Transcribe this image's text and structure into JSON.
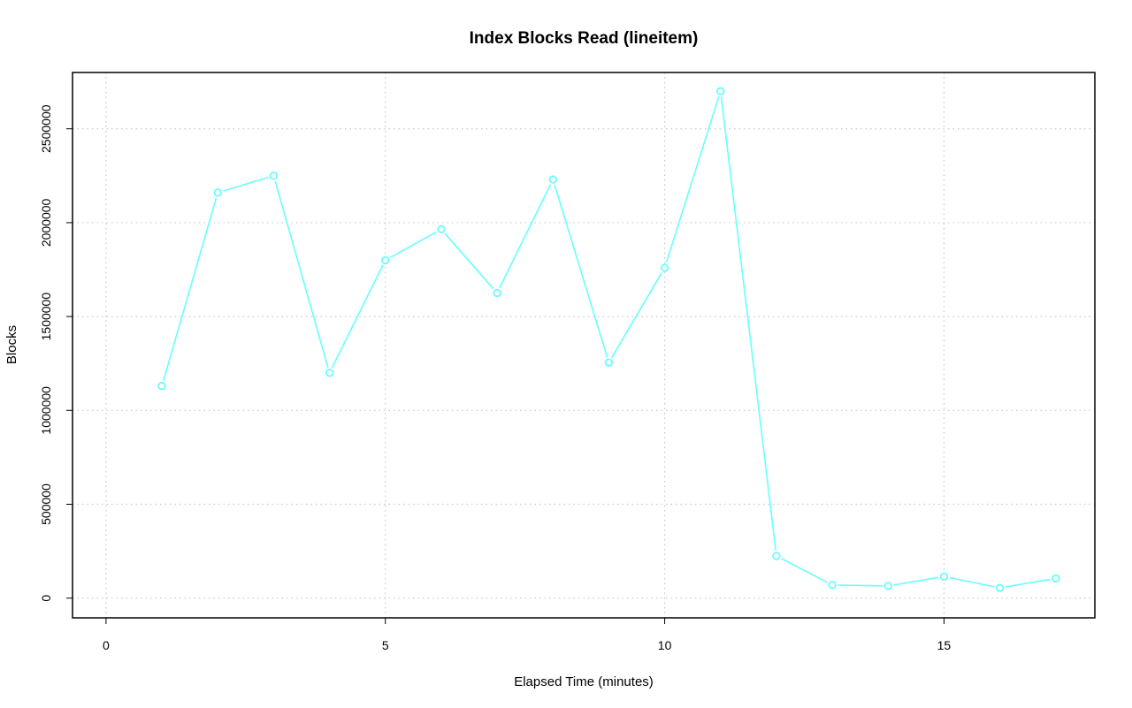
{
  "chart_data": {
    "type": "line",
    "title": "Index Blocks Read (lineitem)",
    "xlabel": "Elapsed Time (minutes)",
    "ylabel": "Blocks",
    "xlim": [
      -0.6,
      17.7
    ],
    "ylim": [
      -105000,
      2800000
    ],
    "x_ticks": [
      0,
      5,
      10,
      15
    ],
    "y_ticks": [
      0,
      500000,
      1000000,
      1500000,
      2000000,
      2500000
    ],
    "x_tick_labels": [
      "0",
      "5",
      "10",
      "15"
    ],
    "y_tick_labels": [
      "0",
      "500000",
      "1000000",
      "1500000",
      "2000000",
      "2500000"
    ],
    "grid": true,
    "legend": "none",
    "series": [
      {
        "color": "#66ffff",
        "marker": "open-circle",
        "x": [
          1,
          2,
          3,
          4,
          5,
          6,
          7,
          8,
          9,
          10,
          11,
          12,
          13,
          14,
          15,
          16,
          17
        ],
        "y": [
          1130000,
          2160000,
          2250000,
          1200000,
          1800000,
          1965000,
          1625000,
          2230000,
          1255000,
          1760000,
          2700000,
          225000,
          70000,
          65000,
          115000,
          55000,
          105000
        ]
      }
    ]
  }
}
